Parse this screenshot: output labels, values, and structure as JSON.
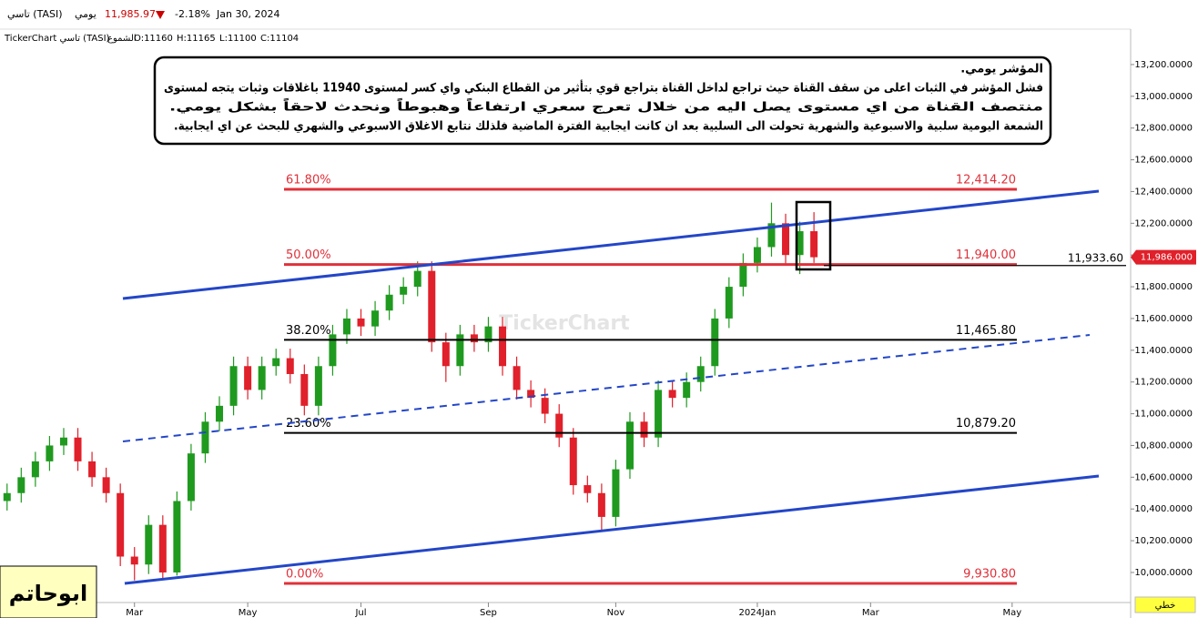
{
  "header": {
    "symbol": "تاسي (TASI)",
    "period": "يومي",
    "price": "11,985.97",
    "change": "-2.18%",
    "date": "Jan 30, 2024",
    "source": "TickerChart تاسي (TASI)",
    "chart_kind": "الشموع",
    "open": "O:11160",
    "high": "H:11165",
    "low": "L:11100",
    "close": "C:11104"
  },
  "note": {
    "lines": [
      "المؤشر يومي.",
      "فشل المؤشر في الثبات اعلى من سقف القناة حيث تراجع لداخل القناة بتراجع قوي بتأثير من القطاع البنكي واي كسر لمستوى 11940 باغلاقات وثبات يتجه لمستوى",
      "منتصف القناة من اي مستوى يصل اليه من خلال تعرج سعري ارتفاعاً وهبوطاً ونحدث لاحقاً بشكل يومي.",
      "الشمعة اليومية سلبية والاسبوعية والشهرية تحولت الى السلبية بعد ان كانت ايجابية الفترة الماضية فلذلك نتابع الاغلاق الاسبوعي والشهري للبحث عن اي ايجابية."
    ]
  },
  "author": "ابوحاتم",
  "watermark": "TickerChart",
  "style_button": "خطي",
  "chart_data": {
    "type": "candlestick",
    "categories": [
      null,
      null,
      null,
      null,
      null,
      null,
      null,
      null,
      null,
      "Mar",
      null,
      null,
      null,
      null,
      null,
      null,
      null,
      "May",
      null,
      null,
      null,
      null,
      null,
      null,
      null,
      "Jul",
      null,
      null,
      null,
      null,
      null,
      null,
      null,
      null,
      "Sep",
      null,
      null,
      null,
      null,
      null,
      null,
      null,
      null,
      "Nov",
      null,
      null,
      null,
      null,
      null,
      null,
      null,
      null,
      null,
      "2024Jan",
      null,
      null,
      null,
      null,
      null,
      null,
      null,
      "Mar",
      null,
      null,
      null,
      null,
      null,
      null,
      null,
      null,
      null,
      "May",
      null,
      null,
      null,
      null,
      null,
      null,
      null,
      null
    ],
    "open": [
      10450,
      10500,
      10600,
      10700,
      10800,
      10850,
      10700,
      10600,
      10500,
      10100,
      10050,
      10300,
      10000,
      10450,
      10750,
      10950,
      11050,
      11300,
      11150,
      11300,
      11350,
      11250,
      11050,
      11300,
      11500,
      11600,
      11550,
      11650,
      11750,
      11800,
      11900,
      11450,
      11300,
      11500,
      11450,
      11550,
      11300,
      11150,
      11100,
      11000,
      10850,
      10550,
      10500,
      10350,
      10650,
      10950,
      10850,
      11150,
      11100,
      11200,
      11300,
      11600,
      11800,
      11950,
      12050,
      12200,
      12000,
      12150,
      null,
      null,
      null,
      null,
      null,
      null,
      null,
      null,
      null,
      null,
      null,
      null,
      null,
      null,
      null,
      null,
      null,
      null,
      null,
      null,
      null,
      null
    ],
    "high": [
      10560,
      10660,
      10760,
      10860,
      10910,
      10910,
      10760,
      10660,
      10560,
      10160,
      10360,
      10360,
      10510,
      10810,
      11010,
      11110,
      11360,
      11360,
      11360,
      11410,
      11410,
      11310,
      11360,
      11560,
      11660,
      11660,
      11710,
      11810,
      11860,
      11960,
      11960,
      11510,
      11560,
      11560,
      11610,
      11610,
      11360,
      11210,
      11160,
      11060,
      10910,
      10610,
      10560,
      10710,
      11010,
      11010,
      11210,
      11210,
      11260,
      11360,
      11660,
      11860,
      12010,
      12110,
      12330,
      12260,
      12210,
      12270,
      null,
      null,
      null,
      null,
      null,
      null,
      null,
      null,
      null,
      null,
      null,
      null,
      null,
      null,
      null,
      null,
      null,
      null,
      null,
      null,
      null,
      null
    ],
    "low": [
      10390,
      10440,
      10540,
      10640,
      10740,
      10640,
      10540,
      10440,
      10040,
      9950,
      9990,
      9960,
      9980,
      10390,
      10690,
      10890,
      10990,
      11090,
      11090,
      11240,
      11190,
      10990,
      10990,
      11240,
      11440,
      11490,
      11490,
      11590,
      11690,
      11740,
      11390,
      11200,
      11240,
      11390,
      11390,
      11240,
      11090,
      11040,
      10940,
      10790,
      10490,
      10440,
      10260,
      10290,
      10590,
      10790,
      10790,
      11040,
      11040,
      11140,
      11240,
      11540,
      11740,
      11890,
      11990,
      11940,
      11880,
      11950,
      null,
      null,
      null,
      null,
      null,
      null,
      null,
      null,
      null,
      null,
      null,
      null,
      null,
      null,
      null,
      null,
      null,
      null,
      null,
      null,
      null,
      null
    ],
    "close": [
      10500,
      10600,
      10700,
      10800,
      10850,
      10700,
      10600,
      10500,
      10100,
      10050,
      10300,
      10000,
      10450,
      10750,
      10950,
      11050,
      11300,
      11150,
      11300,
      11350,
      11250,
      11050,
      11300,
      11500,
      11600,
      11550,
      11650,
      11750,
      11800,
      11900,
      11450,
      11300,
      11500,
      11450,
      11550,
      11300,
      11150,
      11100,
      11000,
      10850,
      10550,
      10500,
      10350,
      10650,
      10950,
      10850,
      11150,
      11100,
      11200,
      11300,
      11600,
      11800,
      11950,
      12050,
      12200,
      12000,
      12150,
      11986,
      null,
      null,
      null,
      null,
      null,
      null,
      null,
      null,
      null,
      null,
      null,
      null,
      null,
      null,
      null,
      null,
      null,
      null,
      null,
      null,
      null,
      null
    ],
    "up_color": "#1f9a1f",
    "down_color": "#e0202a",
    "ylim": [
      9822,
      13406
    ],
    "yticks": [
      {
        "value": 10000,
        "label": "10,000.0000"
      },
      {
        "value": 10200,
        "label": "10,200.0000"
      },
      {
        "value": 10400,
        "label": "10,400.0000"
      },
      {
        "value": 10600,
        "label": "10,600.0000"
      },
      {
        "value": 10800,
        "label": "10,800.0000"
      },
      {
        "value": 11000,
        "label": "11,000.0000"
      },
      {
        "value": 11200,
        "label": "11,200.0000"
      },
      {
        "value": 11400,
        "label": "11,400.0000"
      },
      {
        "value": 11600,
        "label": "11,600.0000"
      },
      {
        "value": 11800,
        "label": "11,800.0000"
      },
      {
        "value": 12000,
        "label": "12,000.0000"
      },
      {
        "value": 12200,
        "label": "12,200.0000"
      },
      {
        "value": 12400,
        "label": "12,400.0000"
      },
      {
        "value": 12600,
        "label": "12,600.0000"
      },
      {
        "value": 12800,
        "label": "12,800.0000"
      },
      {
        "value": 13000,
        "label": "13,000.0000"
      },
      {
        "value": 13200,
        "label": "13,200.0000"
      }
    ],
    "fib_levels": [
      {
        "name": "61.80%",
        "value": 12414.2,
        "value_label": "12,414.20",
        "color": "#e0303a"
      },
      {
        "name": "50.00%",
        "value": 11940,
        "value_label": "11,940.00",
        "color": "#e0303a"
      },
      {
        "name": "38.20%",
        "value": 11465.8,
        "value_label": "11,465.80",
        "color": "#000000"
      },
      {
        "name": "23.60%",
        "value": 10879.2,
        "value_label": "10,879.20",
        "color": "#000000"
      },
      {
        "name": "0.00%",
        "value": 9930.8,
        "value_label": "9,930.80",
        "color": "#e0303a"
      }
    ],
    "marker_line": {
      "value": 11933.6,
      "label": "11,933.60"
    },
    "last_price": {
      "value": 11986,
      "label": "11,986.000",
      "color": "#e0202a"
    }
  }
}
